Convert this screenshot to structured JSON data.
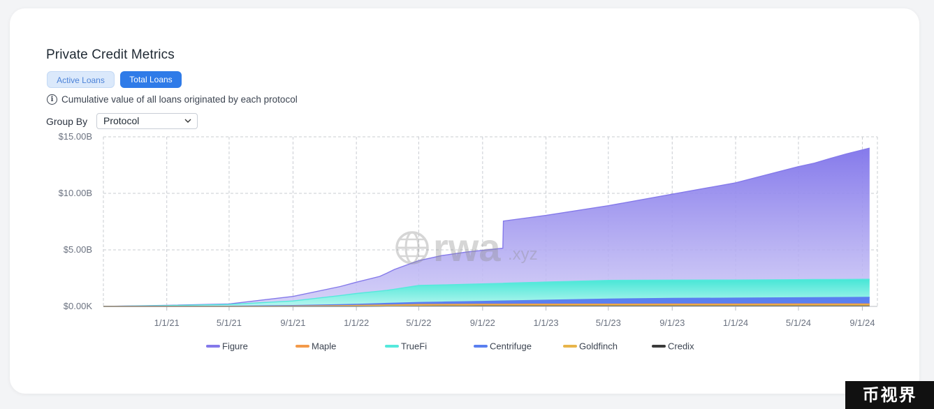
{
  "title": "Private Credit Metrics",
  "tabs": [
    {
      "label": "Active Loans",
      "active": false
    },
    {
      "label": "Total Loans",
      "active": true
    }
  ],
  "info_text": "Cumulative value of all loans originated by each protocol",
  "group_by": {
    "label": "Group By",
    "value": "Protocol"
  },
  "watermark": {
    "text": "rwa",
    "suffix": ".xyz"
  },
  "corner_badge": "币视界",
  "colors": {
    "accent": "#2f7be8",
    "figure": "#8479ea",
    "maple": "#f39a4a",
    "truefi": "#55e9dc",
    "centrifuge": "#5a7ff0",
    "goldfinch": "#e8b54a",
    "credix": "#3b3b3b"
  },
  "chart_data": {
    "type": "area",
    "stacked": true,
    "x_start": "2020-09-01",
    "x_end": "2024-09-30",
    "y_ticks": [
      "$0.00K",
      "$5.00B",
      "$10.00B",
      "$15.00B"
    ],
    "x_ticks": [
      "1/1/21",
      "5/1/21",
      "9/1/21",
      "1/1/22",
      "5/1/22",
      "9/1/22",
      "1/1/23",
      "5/1/23",
      "9/1/23",
      "1/1/24",
      "5/1/24",
      "9/1/24"
    ],
    "ylim": [
      0,
      15
    ],
    "y_unit": "B USD",
    "grid": true,
    "legend_position": "bottom",
    "series": [
      {
        "name": "Figure",
        "color": "#8479ea",
        "points": [
          [
            "2020-09-01",
            0.0
          ],
          [
            "2021-05-01",
            0.05
          ],
          [
            "2021-09-01",
            0.4
          ],
          [
            "2021-12-01",
            0.8
          ],
          [
            "2022-01-01",
            1.0
          ],
          [
            "2022-02-15",
            1.3
          ],
          [
            "2022-03-15",
            1.75
          ],
          [
            "2022-05-01",
            2.2
          ],
          [
            "2022-06-15",
            2.6
          ],
          [
            "2022-08-01",
            2.85
          ],
          [
            "2022-10-10",
            3.1
          ],
          [
            "2022-10-11",
            5.5
          ],
          [
            "2023-01-01",
            5.9
          ],
          [
            "2023-05-01",
            6.6
          ],
          [
            "2023-09-01",
            7.6
          ],
          [
            "2024-01-01",
            8.6
          ],
          [
            "2024-05-01",
            10.0
          ],
          [
            "2024-06-01",
            10.3
          ],
          [
            "2024-07-01",
            10.7
          ],
          [
            "2024-08-01",
            11.1
          ],
          [
            "2024-09-15",
            11.6
          ]
        ]
      },
      {
        "name": "Maple",
        "color": "#f39a4a",
        "points": [
          [
            "2020-09-01",
            0.0
          ],
          [
            "2021-05-01",
            0.005
          ],
          [
            "2021-09-01",
            0.02
          ],
          [
            "2022-01-01",
            0.04
          ],
          [
            "2022-05-01",
            0.06
          ],
          [
            "2023-01-01",
            0.07
          ],
          [
            "2024-09-15",
            0.08
          ]
        ]
      },
      {
        "name": "TrueFi",
        "color": "#55e9dc",
        "points": [
          [
            "2020-09-01",
            0.0
          ],
          [
            "2021-01-01",
            0.06
          ],
          [
            "2021-05-01",
            0.15
          ],
          [
            "2021-09-01",
            0.4
          ],
          [
            "2021-12-01",
            0.8
          ],
          [
            "2022-01-01",
            0.95
          ],
          [
            "2022-03-01",
            1.15
          ],
          [
            "2022-05-01",
            1.5
          ],
          [
            "2022-09-01",
            1.55
          ],
          [
            "2023-01-01",
            1.6
          ],
          [
            "2023-05-01",
            1.65
          ],
          [
            "2023-09-01",
            1.62
          ],
          [
            "2024-01-01",
            1.6
          ],
          [
            "2024-05-01",
            1.6
          ],
          [
            "2024-09-15",
            1.6
          ]
        ]
      },
      {
        "name": "Centrifuge",
        "color": "#5a7ff0",
        "points": [
          [
            "2020-09-01",
            0.0
          ],
          [
            "2021-05-01",
            0.02
          ],
          [
            "2021-09-01",
            0.05
          ],
          [
            "2022-01-01",
            0.1
          ],
          [
            "2022-05-01",
            0.18
          ],
          [
            "2022-09-01",
            0.25
          ],
          [
            "2023-01-01",
            0.35
          ],
          [
            "2023-05-01",
            0.45
          ],
          [
            "2023-09-01",
            0.5
          ],
          [
            "2024-01-01",
            0.52
          ],
          [
            "2024-05-01",
            0.55
          ],
          [
            "2024-09-15",
            0.58
          ]
        ]
      },
      {
        "name": "Goldfinch",
        "color": "#e8b54a",
        "points": [
          [
            "2020-09-01",
            0.0
          ],
          [
            "2021-05-01",
            0.0
          ],
          [
            "2021-09-01",
            0.01
          ],
          [
            "2022-01-01",
            0.05
          ],
          [
            "2022-05-01",
            0.09
          ],
          [
            "2022-09-01",
            0.1
          ],
          [
            "2024-09-15",
            0.1
          ]
        ]
      },
      {
        "name": "Credix",
        "color": "#3b3b3b",
        "points": [
          [
            "2020-09-01",
            0.0
          ],
          [
            "2022-01-01",
            0.0
          ],
          [
            "2022-05-01",
            0.02
          ],
          [
            "2022-09-01",
            0.03
          ],
          [
            "2024-09-15",
            0.04
          ]
        ]
      }
    ]
  }
}
